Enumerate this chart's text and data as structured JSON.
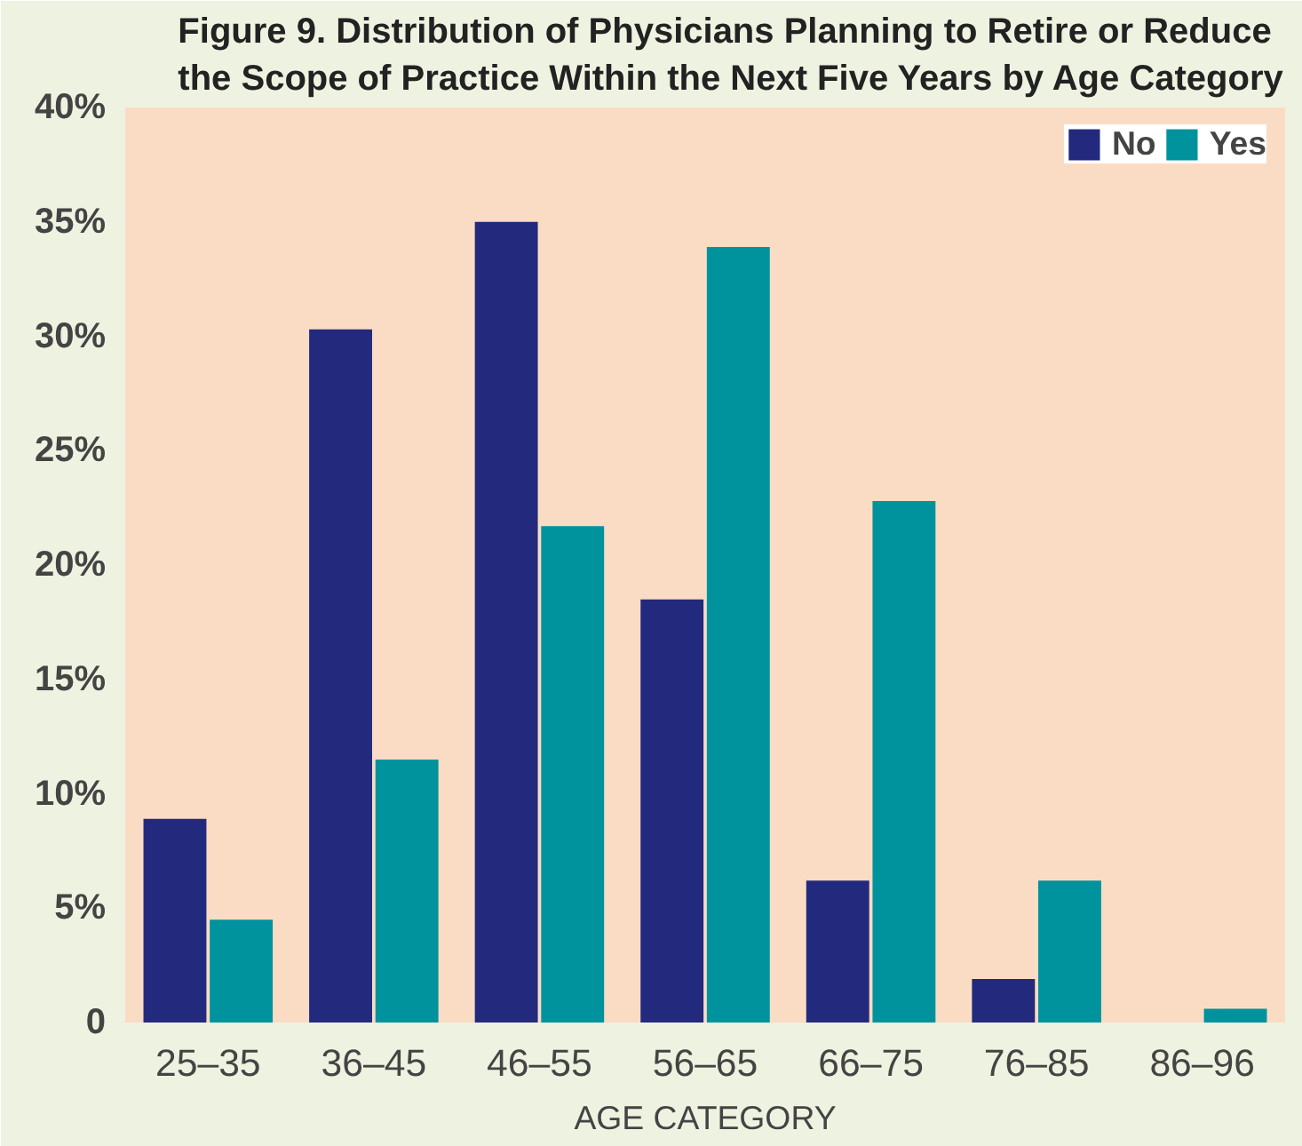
{
  "chart_data": {
    "type": "bar",
    "title": "Figure 9. Distribution of Physicians Planning to Retire or Reduce\nthe Scope of Practice Within the Next Five Years by Age Category",
    "xlabel": "AGE CATEGORY",
    "categories": [
      "25–35",
      "36–45",
      "46–55",
      "56–65",
      "66–75",
      "76–85",
      "86–96"
    ],
    "series": [
      {
        "name": "No",
        "color": "#232a7e",
        "values": [
          8.9,
          30.3,
          35.0,
          18.5,
          6.2,
          1.9,
          0
        ]
      },
      {
        "name": "Yes",
        "color": "#00939e",
        "values": [
          4.5,
          11.5,
          21.7,
          33.9,
          22.8,
          6.2,
          0.6
        ]
      }
    ],
    "ylim": [
      0,
      40
    ],
    "yticks": [
      {
        "value": 0,
        "label": "0"
      },
      {
        "value": 5,
        "label": "5%"
      },
      {
        "value": 10,
        "label": "10%"
      },
      {
        "value": 15,
        "label": "15%"
      },
      {
        "value": 20,
        "label": "20%"
      },
      {
        "value": 25,
        "label": "25%"
      },
      {
        "value": 30,
        "label": "30%"
      },
      {
        "value": 35,
        "label": "35%"
      },
      {
        "value": 40,
        "label": "40%"
      }
    ],
    "grid": false,
    "legend": "top right"
  }
}
